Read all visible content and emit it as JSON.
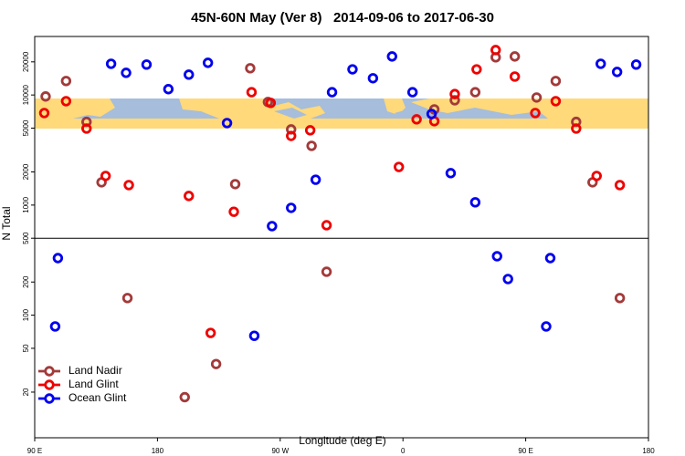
{
  "chart_data": {
    "type": "scatter",
    "title": "45N-60N May (Ver 8)   2014-09-06 to 2017-06-30",
    "x_label": "Longitude (deg E)",
    "y_label": "N Total",
    "log_y": true,
    "legend": "lower left",
    "xlim": [
      90,
      540
    ],
    "xticks": [
      {
        "value": 90,
        "label": "90 E"
      },
      {
        "value": 180,
        "label": "180"
      },
      {
        "value": 270,
        "label": "90 W"
      },
      {
        "value": 360,
        "label": "0"
      },
      {
        "value": 450,
        "label": "90 E"
      },
      {
        "value": 540,
        "label": "180"
      }
    ],
    "ylim": [
      7.7,
      34000
    ],
    "yticks": [
      20,
      50,
      100,
      200,
      500,
      1000,
      2000,
      5000,
      10000,
      20000
    ],
    "reference_line": 500,
    "series": [
      {
        "name": "Land Nadir",
        "color": "#a33a3a",
        "x": [
          98,
          113,
          128,
          139,
          158,
          200,
          223,
          237,
          248,
          261,
          278,
          293,
          304,
          383,
          398,
          413,
          428,
          442,
          458,
          472,
          487,
          499,
          519
        ],
        "values": [
          9700,
          13400,
          5700,
          1610,
          143,
          18,
          36,
          1550,
          17500,
          8630,
          4870,
          3450,
          248,
          7400,
          8960,
          10600,
          22000,
          22400,
          9490,
          13400,
          5700,
          1610,
          143
        ]
      },
      {
        "name": "Land Glint",
        "color": "#ee0000",
        "x": [
          97,
          113,
          128,
          142,
          159,
          203,
          219,
          236,
          249,
          263,
          278,
          292,
          304,
          357,
          370,
          383,
          398,
          414,
          428,
          442,
          457,
          472,
          487,
          502,
          519
        ],
        "values": [
          6860,
          8790,
          4960,
          1840,
          1520,
          1210,
          69,
          870,
          10600,
          8480,
          4250,
          4780,
          656,
          2220,
          6010,
          5780,
          10200,
          17100,
          25600,
          14700,
          6860,
          8790,
          4960,
          1840,
          1520
        ]
      },
      {
        "name": "Ocean Glint",
        "color": "#0000ee",
        "x": [
          107,
          105,
          146,
          157,
          172,
          188,
          203,
          217,
          231,
          251,
          264,
          278,
          296,
          308,
          323,
          338,
          352,
          367,
          381,
          395,
          413,
          429,
          437,
          465,
          468,
          505,
          517,
          531
        ],
        "values": [
          330,
          79,
          19200,
          15900,
          18900,
          11300,
          15300,
          19600,
          5560,
          65,
          644,
          944,
          1700,
          10600,
          17100,
          14200,
          22400,
          10600,
          6730,
          1950,
          1060,
          343,
          213,
          79,
          330,
          19200,
          16200,
          18900
        ]
      }
    ]
  }
}
